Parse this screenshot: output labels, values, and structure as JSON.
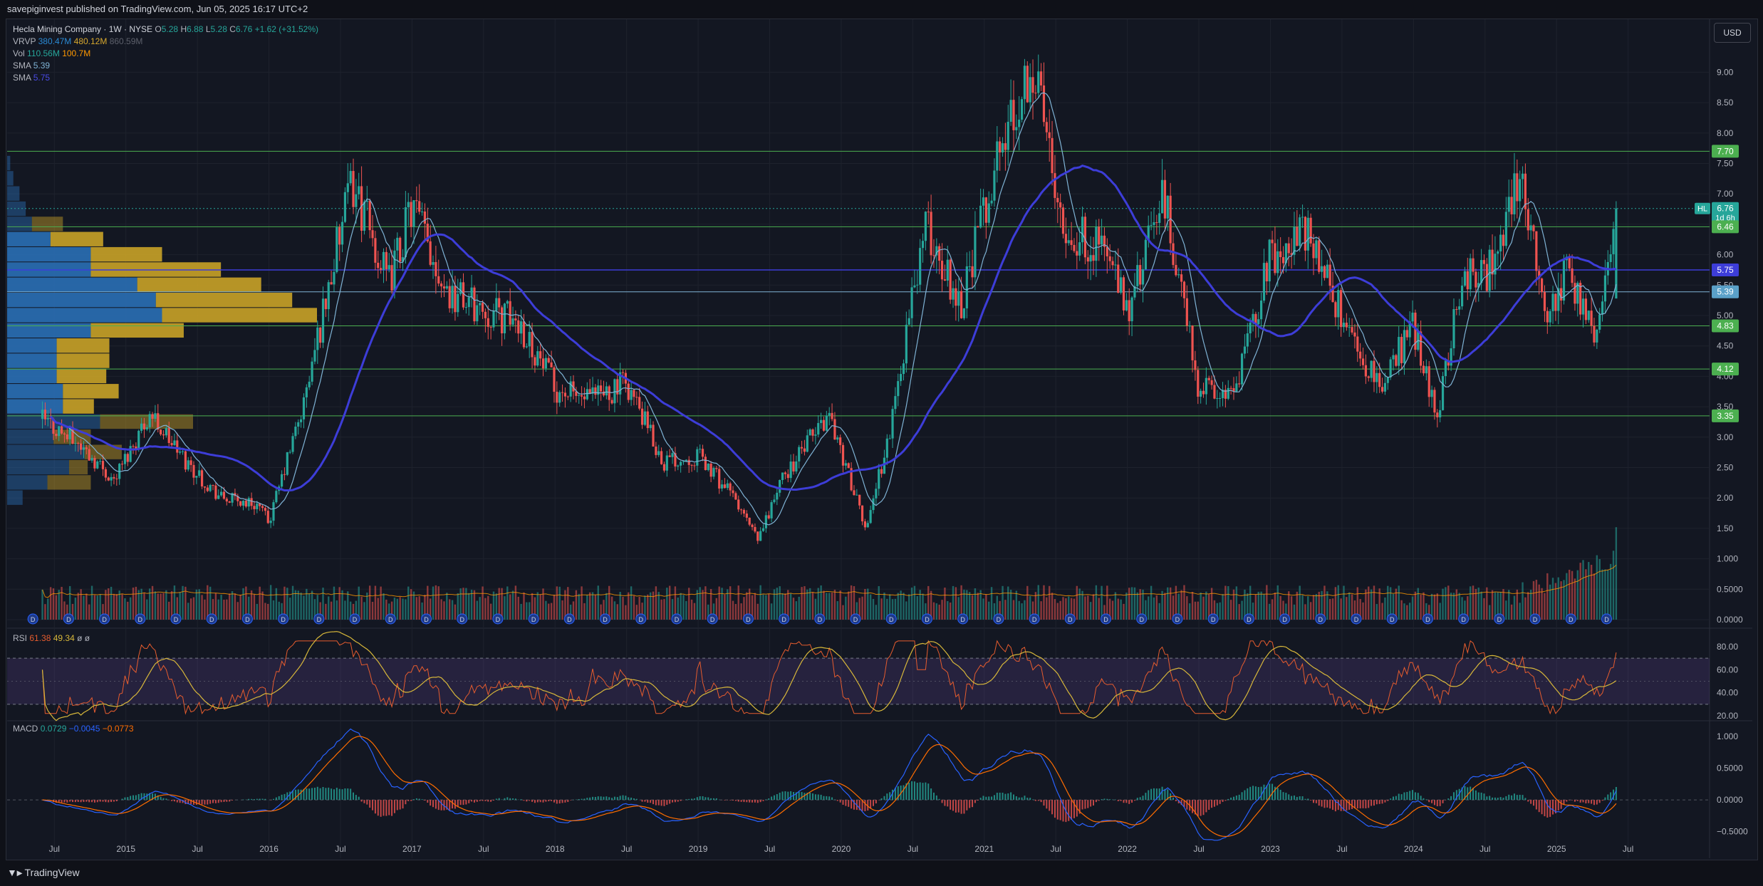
{
  "header": {
    "publisher_text": "savepiginvest published on TradingView.com, Jun 05, 2025 16:17 UTC+2"
  },
  "footer": {
    "brand": "TradingView"
  },
  "currency_button": "USD",
  "legend": {
    "instrument": "Hecla Mining Company · 1W · NYSE",
    "ohlc": {
      "O_label": "O",
      "O": "5.28",
      "H_label": "H",
      "H": "6.88",
      "L_label": "L",
      "L": "5.28",
      "C_label": "C",
      "C": "6.76",
      "change": "+1.62 (+31.52%)"
    },
    "vrvp": {
      "name": "VRVP",
      "v1": "380.47M",
      "v2": "480.12M",
      "v3": "860.59M"
    },
    "vol": {
      "name": "Vol",
      "v1": "110.56M",
      "v2": "100.7M"
    },
    "sma1": {
      "name": "SMA",
      "value": "5.39"
    },
    "sma2": {
      "name": "SMA",
      "value": "5.75"
    },
    "rsi": {
      "name": "RSI",
      "v1": "61.38",
      "v2": "49.34",
      "v3": "ø",
      "v4": "ø"
    },
    "macd": {
      "name": "MACD",
      "v1": "0.0729",
      "v2": "−0.0045",
      "v3": "−0.0773"
    }
  },
  "colors": {
    "up": "#26a69a",
    "down": "#ef5350",
    "sma_fast": "#7fb3d5",
    "sma_slow": "#3d3dd8",
    "level": "#4caf50",
    "vp_up": "#2a6fb5",
    "vp_down": "#c9a227",
    "rsi_line": "#e65c2e",
    "rsi_ma": "#d7b73a",
    "macd_line": "#2962ff",
    "signal_line": "#ff6d00"
  },
  "chart_data": [
    {
      "type": "candlestick",
      "title": "Hecla Mining Company · 1W · NYSE",
      "x_tick_labels": [
        "Jul",
        "2015",
        "Jul",
        "2016",
        "Jul",
        "2017",
        "Jul",
        "2018",
        "Jul",
        "2019",
        "Jul",
        "2020",
        "Jul",
        "2021",
        "Jul",
        "2022",
        "Jul",
        "2023",
        "Jul",
        "2024",
        "Jul",
        "2025",
        "Jul"
      ],
      "y_tick_labels": [
        "0.0000",
        "0.5000",
        "1.000",
        "1.50",
        "2.00",
        "2.50",
        "3.00",
        "3.50",
        "4.00",
        "4.50",
        "5.00",
        "5.50",
        "6.00",
        "6.50",
        "7.00",
        "7.50",
        "8.00",
        "8.50",
        "9.00"
      ],
      "ylim": [
        0,
        10.0
      ],
      "price_path": [
        [
          "2014-06",
          3.3
        ],
        [
          "2014-09",
          2.9
        ],
        [
          "2014-12",
          2.3
        ],
        [
          "2015-03",
          3.4
        ],
        [
          "2015-06",
          2.6
        ],
        [
          "2015-09",
          2.0
        ],
        [
          "2015-12",
          1.9
        ],
        [
          "2016-01",
          1.6
        ],
        [
          "2016-04",
          3.6
        ],
        [
          "2016-06",
          5.5
        ],
        [
          "2016-08",
          7.2
        ],
        [
          "2016-11",
          5.5
        ],
        [
          "2017-01",
          6.8
        ],
        [
          "2017-04",
          5.4
        ],
        [
          "2017-07",
          5.1
        ],
        [
          "2017-10",
          4.9
        ],
        [
          "2018-01",
          3.8
        ],
        [
          "2018-04",
          3.6
        ],
        [
          "2018-07",
          3.9
        ],
        [
          "2018-10",
          2.6
        ],
        [
          "2019-01",
          2.7
        ],
        [
          "2019-04",
          2.0
        ],
        [
          "2019-06",
          1.3
        ],
        [
          "2019-08",
          2.3
        ],
        [
          "2019-12",
          3.4
        ],
        [
          "2020-03",
          1.5
        ],
        [
          "2020-05",
          3.0
        ],
        [
          "2020-08",
          6.5
        ],
        [
          "2020-11",
          5.2
        ],
        [
          "2021-02",
          7.5
        ],
        [
          "2021-05",
          9.2
        ],
        [
          "2021-08",
          6.3
        ],
        [
          "2021-11",
          6.2
        ],
        [
          "2022-01",
          5.0
        ],
        [
          "2022-04",
          7.0
        ],
        [
          "2022-07",
          3.8
        ],
        [
          "2022-10",
          3.7
        ],
        [
          "2023-01",
          6.0
        ],
        [
          "2023-04",
          6.4
        ],
        [
          "2023-07",
          5.0
        ],
        [
          "2023-10",
          3.8
        ],
        [
          "2024-01",
          4.8
        ],
        [
          "2024-03",
          3.4
        ],
        [
          "2024-05",
          5.6
        ],
        [
          "2024-08",
          5.8
        ],
        [
          "2024-10",
          7.4
        ],
        [
          "2024-12",
          5.0
        ],
        [
          "2025-02",
          5.8
        ],
        [
          "2025-04",
          4.7
        ],
        [
          "2025-05",
          5.3
        ],
        [
          "2025-06",
          6.76
        ]
      ],
      "last_candle": {
        "open": 5.28,
        "high": 6.88,
        "low": 5.28,
        "close": 6.76,
        "change": "+1.62 (+31.52%)"
      },
      "price_labels": [
        {
          "text": "7.70",
          "value": 7.7,
          "kind": "level"
        },
        {
          "text": "6.76",
          "value": 6.76,
          "kind": "last",
          "tag": "HL",
          "countdown": "1d 6h"
        },
        {
          "text": "6.46",
          "value": 6.46,
          "kind": "level"
        },
        {
          "text": "5.75",
          "value": 5.75,
          "kind": "sma_slow"
        },
        {
          "text": "5.39",
          "value": 5.39,
          "kind": "sma_fast"
        },
        {
          "text": "4.83",
          "value": 4.83,
          "kind": "level"
        },
        {
          "text": "4.12",
          "value": 4.12,
          "kind": "level"
        },
        {
          "text": "3.35",
          "value": 3.35,
          "kind": "level"
        }
      ],
      "horizontal_levels": [
        7.7,
        6.46,
        4.83,
        4.12,
        3.35
      ],
      "volume_profile": [
        {
          "price": 2.0,
          "up": 0.05,
          "down": 0.0
        },
        {
          "price": 2.25,
          "up": 0.13,
          "down": 0.14
        },
        {
          "price": 2.5,
          "up": 0.2,
          "down": 0.06
        },
        {
          "price": 2.75,
          "up": 0.25,
          "down": 0.12
        },
        {
          "price": 3.0,
          "up": 0.15,
          "down": 0.12
        },
        {
          "price": 3.25,
          "up": 0.3,
          "down": 0.3
        },
        {
          "price": 3.5,
          "up": 0.18,
          "down": 0.1
        },
        {
          "price": 3.75,
          "up": 0.18,
          "down": 0.18
        },
        {
          "price": 4.0,
          "up": 0.16,
          "down": 0.16
        },
        {
          "price": 4.25,
          "up": 0.16,
          "down": 0.17
        },
        {
          "price": 4.5,
          "up": 0.16,
          "down": 0.17
        },
        {
          "price": 4.75,
          "up": 0.27,
          "down": 0.3
        },
        {
          "price": 5.0,
          "up": 0.5,
          "down": 0.5
        },
        {
          "price": 5.25,
          "up": 0.48,
          "down": 0.44
        },
        {
          "price": 5.5,
          "up": 0.42,
          "down": 0.4
        },
        {
          "price": 5.75,
          "up": 0.27,
          "down": 0.42
        },
        {
          "price": 6.0,
          "up": 0.27,
          "down": 0.23
        },
        {
          "price": 6.25,
          "up": 0.14,
          "down": 0.17
        },
        {
          "price": 6.5,
          "up": 0.08,
          "down": 0.1
        },
        {
          "price": 6.75,
          "up": 0.06,
          "down": 0.0
        },
        {
          "price": 7.0,
          "up": 0.04,
          "down": 0.0
        },
        {
          "price": 7.25,
          "up": 0.02,
          "down": 0.0
        },
        {
          "price": 7.5,
          "up": 0.01,
          "down": 0.0
        }
      ],
      "dividend_marker": "D"
    },
    {
      "type": "line",
      "title": "RSI",
      "y_tick_labels": [
        "20.00",
        "40.00",
        "60.00",
        "80.00"
      ],
      "ylim": [
        20,
        88
      ],
      "band": [
        30,
        70
      ],
      "midline": 50
    },
    {
      "type": "line",
      "title": "MACD",
      "y_tick_labels": [
        "−0.5000",
        "0.0000",
        "0.5000",
        "1.000"
      ],
      "ylim": [
        -0.75,
        1.1
      ]
    }
  ]
}
